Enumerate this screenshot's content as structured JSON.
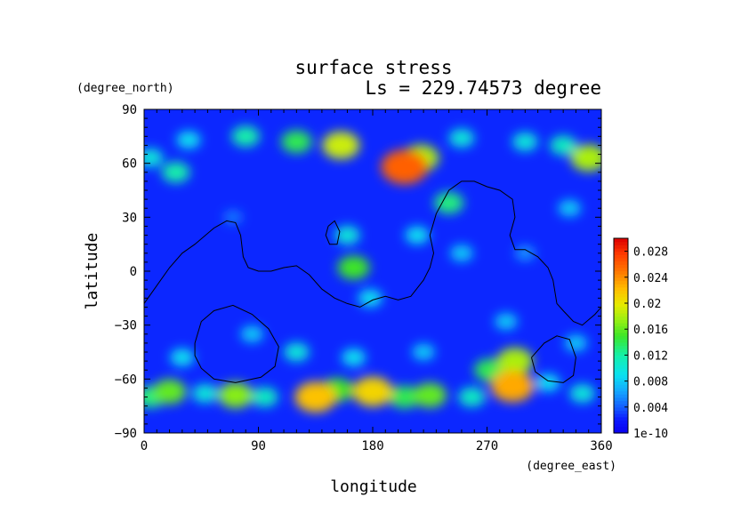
{
  "chart_data": {
    "type": "heatmap",
    "title": "surface stress",
    "subtitle": "Ls = 229.74573 degree",
    "xlabel": "longitude",
    "ylabel": "latitude",
    "xunit": "(degree_east)",
    "yunit": "(degree_north)",
    "xlim": [
      0,
      360
    ],
    "ylim": [
      -90,
      90
    ],
    "xticks": [
      0,
      90,
      180,
      270,
      360
    ],
    "yticks": [
      90,
      60,
      30,
      0,
      -30,
      -60,
      -90
    ],
    "colorbar": {
      "min": 0,
      "max": 0.03,
      "tick_values": [
        0,
        0.004,
        0.008,
        0.012,
        0.016,
        0.02,
        0.024,
        0.028
      ],
      "tick_labels": [
        "1e-10",
        "0.004",
        "0.008",
        "0.012",
        "0.016",
        "0.02",
        "0.024",
        "0.028"
      ]
    },
    "grid": false,
    "background_value": 0.0025,
    "features": [
      {
        "lon": 5,
        "lat": -70,
        "value": 0.013
      },
      {
        "lon": 20,
        "lat": -67,
        "value": 0.016
      },
      {
        "lon": 48,
        "lat": -68,
        "value": 0.01
      },
      {
        "lon": 72,
        "lat": -69,
        "value": 0.017
      },
      {
        "lon": 95,
        "lat": -70,
        "value": 0.011
      },
      {
        "lon": 135,
        "lat": -70,
        "value": 0.022
      },
      {
        "lon": 152,
        "lat": -66,
        "value": 0.015
      },
      {
        "lon": 180,
        "lat": -67,
        "value": 0.021
      },
      {
        "lon": 205,
        "lat": -70,
        "value": 0.014
      },
      {
        "lon": 225,
        "lat": -69,
        "value": 0.016
      },
      {
        "lon": 258,
        "lat": -70,
        "value": 0.011
      },
      {
        "lon": 290,
        "lat": -64,
        "value": 0.023
      },
      {
        "lon": 292,
        "lat": -50,
        "value": 0.018
      },
      {
        "lon": 272,
        "lat": -55,
        "value": 0.014
      },
      {
        "lon": 318,
        "lat": -62,
        "value": 0.009
      },
      {
        "lon": 345,
        "lat": -68,
        "value": 0.01
      },
      {
        "lon": 30,
        "lat": -48,
        "value": 0.009
      },
      {
        "lon": 120,
        "lat": -45,
        "value": 0.01
      },
      {
        "lon": 165,
        "lat": -48,
        "value": 0.009
      },
      {
        "lon": 220,
        "lat": -45,
        "value": 0.008
      },
      {
        "lon": 85,
        "lat": -35,
        "value": 0.008
      },
      {
        "lon": 285,
        "lat": -28,
        "value": 0.008
      },
      {
        "lon": 340,
        "lat": -40,
        "value": 0.008
      },
      {
        "lon": 165,
        "lat": 2,
        "value": 0.015
      },
      {
        "lon": 160,
        "lat": 20,
        "value": 0.01
      },
      {
        "lon": 178,
        "lat": -15,
        "value": 0.009
      },
      {
        "lon": 215,
        "lat": 20,
        "value": 0.009
      },
      {
        "lon": 240,
        "lat": 38,
        "value": 0.013
      },
      {
        "lon": 250,
        "lat": 10,
        "value": 0.008
      },
      {
        "lon": 335,
        "lat": 35,
        "value": 0.008
      },
      {
        "lon": 300,
        "lat": 10,
        "value": 0.006
      },
      {
        "lon": 70,
        "lat": 30,
        "value": 0.005
      },
      {
        "lon": 205,
        "lat": 58,
        "value": 0.026
      },
      {
        "lon": 218,
        "lat": 63,
        "value": 0.018
      },
      {
        "lon": 155,
        "lat": 70,
        "value": 0.019
      },
      {
        "lon": 120,
        "lat": 72,
        "value": 0.014
      },
      {
        "lon": 80,
        "lat": 75,
        "value": 0.012
      },
      {
        "lon": 35,
        "lat": 73,
        "value": 0.009
      },
      {
        "lon": 25,
        "lat": 55,
        "value": 0.012
      },
      {
        "lon": 5,
        "lat": 63,
        "value": 0.01
      },
      {
        "lon": 250,
        "lat": 74,
        "value": 0.01
      },
      {
        "lon": 300,
        "lat": 72,
        "value": 0.01
      },
      {
        "lon": 350,
        "lat": 63,
        "value": 0.018
      },
      {
        "lon": 330,
        "lat": 70,
        "value": 0.011
      }
    ],
    "topography_contours": [
      [
        [
          0,
          -18
        ],
        [
          10,
          -8
        ],
        [
          20,
          2
        ],
        [
          30,
          10
        ],
        [
          40,
          15
        ],
        [
          55,
          24
        ],
        [
          65,
          28
        ],
        [
          72,
          27
        ],
        [
          76,
          20
        ],
        [
          78,
          8
        ],
        [
          82,
          2
        ],
        [
          90,
          0
        ],
        [
          100,
          0
        ],
        [
          110,
          2
        ],
        [
          120,
          3
        ],
        [
          130,
          -2
        ],
        [
          140,
          -10
        ],
        [
          150,
          -15
        ],
        [
          160,
          -18
        ],
        [
          170,
          -20
        ],
        [
          180,
          -16
        ],
        [
          190,
          -14
        ],
        [
          200,
          -16
        ],
        [
          210,
          -14
        ],
        [
          220,
          -5
        ],
        [
          225,
          2
        ],
        [
          228,
          10
        ],
        [
          225,
          20
        ],
        [
          230,
          32
        ],
        [
          240,
          45
        ],
        [
          250,
          50
        ],
        [
          260,
          50
        ],
        [
          270,
          47
        ],
        [
          280,
          45
        ],
        [
          290,
          40
        ],
        [
          292,
          30
        ],
        [
          288,
          20
        ],
        [
          292,
          12
        ],
        [
          300,
          12
        ],
        [
          310,
          8
        ],
        [
          318,
          2
        ],
        [
          322,
          -5
        ],
        [
          325,
          -18
        ],
        [
          330,
          -22
        ],
        [
          338,
          -28
        ],
        [
          345,
          -30
        ],
        [
          355,
          -24
        ],
        [
          360,
          -20
        ]
      ],
      [
        [
          145,
          25
        ],
        [
          150,
          28
        ],
        [
          154,
          22
        ],
        [
          152,
          15
        ],
        [
          146,
          15
        ],
        [
          143,
          20
        ],
        [
          145,
          25
        ]
      ],
      [
        [
          40,
          -40
        ],
        [
          45,
          -28
        ],
        [
          55,
          -22
        ],
        [
          70,
          -19
        ],
        [
          85,
          -24
        ],
        [
          98,
          -32
        ],
        [
          106,
          -42
        ],
        [
          103,
          -53
        ],
        [
          92,
          -59
        ],
        [
          72,
          -62
        ],
        [
          55,
          -60
        ],
        [
          45,
          -54
        ],
        [
          40,
          -47
        ],
        [
          40,
          -40
        ]
      ],
      [
        [
          305,
          -48
        ],
        [
          315,
          -40
        ],
        [
          325,
          -36
        ],
        [
          335,
          -38
        ],
        [
          340,
          -48
        ],
        [
          338,
          -58
        ],
        [
          330,
          -62
        ],
        [
          318,
          -61
        ],
        [
          308,
          -56
        ],
        [
          305,
          -48
        ]
      ]
    ]
  }
}
